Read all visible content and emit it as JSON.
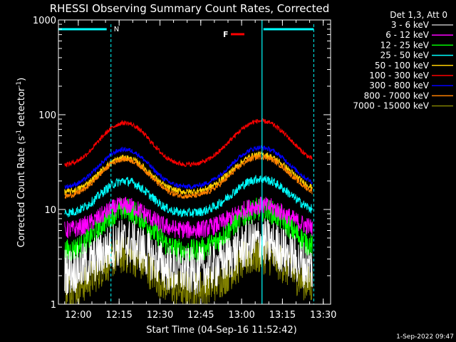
{
  "chart_data": {
    "type": "line",
    "title": "RHESSI Observing Summary Count Rates, Corrected",
    "xlabel": "Start Time (04-Sep-16 11:52:42)",
    "ylabel_main": "Corrected Count Rate (s",
    "ylabel_sup1": "-1",
    "ylabel_mid": " detector",
    "ylabel_sup2": "-1",
    "ylabel_end": ")",
    "yscale": "log",
    "ylim": [
      1,
      1000
    ],
    "xlim": [
      "11:52:42",
      "13:32:42"
    ],
    "x_ticks": [
      "12:00",
      "12:15",
      "12:30",
      "12:45",
      "13:00",
      "13:15",
      "13:30"
    ],
    "y_ticks": [
      "1",
      "10",
      "100",
      "1000"
    ],
    "legend_header": "Det 1,3, Att 0",
    "legend_placement": "right",
    "footer": "1-Sep-2022 09:47",
    "markers": {
      "night_label": "N",
      "flare_label": "F",
      "flare_color": "#ff0000",
      "marker_color": "#00ffff"
    },
    "series": [
      {
        "name": "3 - 6 keV",
        "color": "#ffffff",
        "base": 2.2,
        "peak1": 4.5,
        "peak2": 4.6,
        "noise": 1.8
      },
      {
        "name": "6 - 12 keV",
        "color": "#ff00ff",
        "base": 6.0,
        "peak1": 11,
        "peak2": 11,
        "noise": 1.25
      },
      {
        "name": "12 - 25 keV",
        "color": "#00ff00",
        "base": 3.5,
        "peak1": 10,
        "peak2": 10,
        "noise": 1.35
      },
      {
        "name": "25 - 50 keV",
        "color": "#00ffff",
        "base": 9.0,
        "peak1": 20,
        "peak2": 21,
        "noise": 1.12
      },
      {
        "name": "50 - 100 keV",
        "color": "#ffd000",
        "base": 15,
        "peak1": 35,
        "peak2": 38,
        "noise": 1.08
      },
      {
        "name": "100 - 300 keV",
        "color": "#ff0000",
        "base": 29,
        "peak1": 82,
        "peak2": 86,
        "noise": 1.06
      },
      {
        "name": "300 - 800 keV",
        "color": "#0000ff",
        "base": 17,
        "peak1": 43,
        "peak2": 45,
        "noise": 1.06
      },
      {
        "name": "800 - 7000 keV",
        "color": "#ff8000",
        "base": 13.5,
        "peak1": 34,
        "peak2": 36,
        "noise": 1.07
      },
      {
        "name": "7000 - 15000 keV",
        "color": "#808000",
        "base": 1.4,
        "peak1": 3.3,
        "peak2": 3.3,
        "noise": 1.6
      },
      {
        "name": "3 - 6 keV",
        "color": "#000000",
        "base": 2.0,
        "peak1": 5.5,
        "peak2": 5.5,
        "noise": 1.7
      }
    ]
  }
}
